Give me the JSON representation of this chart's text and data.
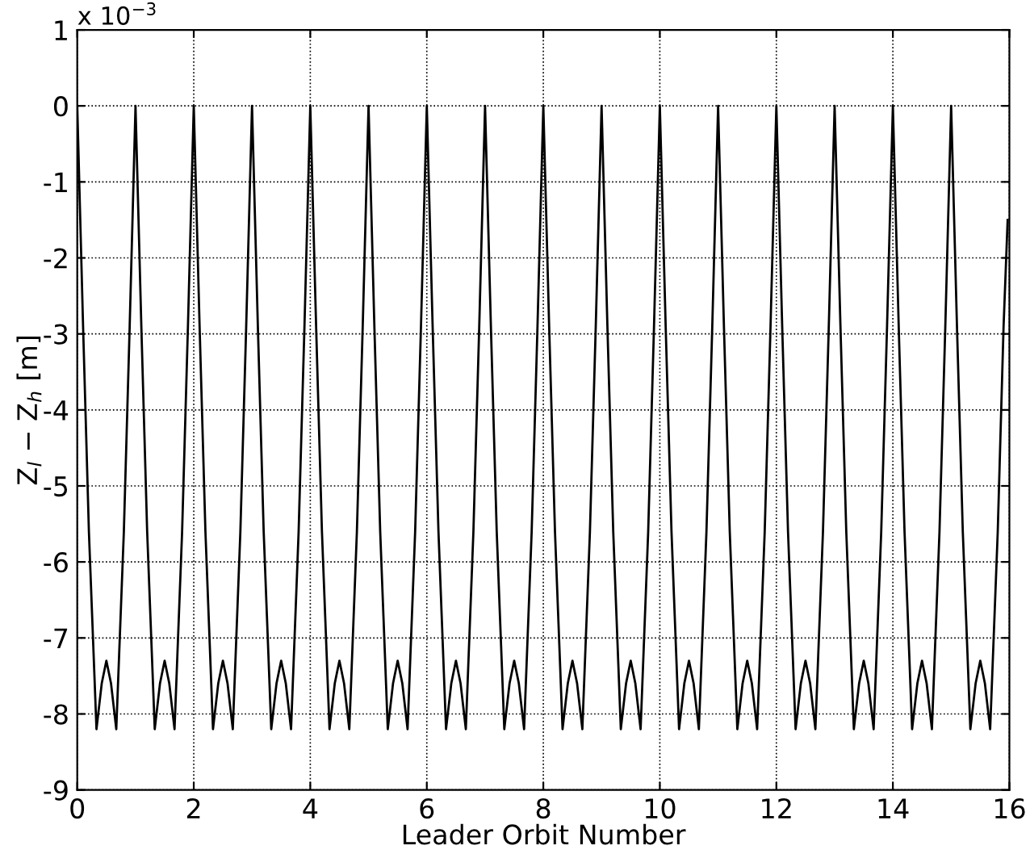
{
  "chart_data": {
    "type": "line",
    "xlabel": "Leader Orbit Number",
    "ylabel": "Z$_{l}$ − Z$_{h}$ [m]",
    "annotations": [
      "x 10$^{−3}$"
    ],
    "xlim": [
      0,
      16
    ],
    "ylim": [
      -9,
      1
    ],
    "xticks": [
      0,
      2,
      4,
      6,
      8,
      10,
      12,
      14,
      16
    ],
    "yticks": [
      -9,
      -8,
      -7,
      -6,
      -5,
      -4,
      -3,
      -2,
      -1,
      0,
      1
    ],
    "grid": true,
    "marker": "none",
    "line_style": "solid",
    "series": [
      {
        "color": "#000000",
        "x": [
          0,
          0.1,
          0.2,
          0.33,
          0.42,
          0.5,
          0.58,
          0.67,
          0.8,
          0.9,
          1,
          1.1,
          1.2,
          1.33,
          1.42,
          1.5,
          1.58,
          1.67,
          1.8,
          1.9,
          2,
          2.1,
          2.2,
          2.33,
          2.42,
          2.5,
          2.58,
          2.67,
          2.8,
          2.9,
          3,
          3.1,
          3.2,
          3.33,
          3.42,
          3.5,
          3.58,
          3.67,
          3.8,
          3.9,
          4,
          4.1,
          4.2,
          4.33,
          4.42,
          4.5,
          4.58,
          4.67,
          4.8,
          4.9,
          5,
          5.1,
          5.2,
          5.33,
          5.42,
          5.5,
          5.58,
          5.67,
          5.8,
          5.9,
          6,
          6.1,
          6.2,
          6.33,
          6.42,
          6.5,
          6.58,
          6.67,
          6.8,
          6.9,
          7,
          7.1,
          7.2,
          7.33,
          7.42,
          7.5,
          7.58,
          7.67,
          7.8,
          7.9,
          8,
          8.1,
          8.2,
          8.33,
          8.42,
          8.5,
          8.58,
          8.67,
          8.8,
          8.9,
          9,
          9.1,
          9.2,
          9.33,
          9.42,
          9.5,
          9.58,
          9.67,
          9.8,
          9.9,
          10,
          10.1,
          10.2,
          10.33,
          10.42,
          10.5,
          10.58,
          10.67,
          10.8,
          10.9,
          11,
          11.1,
          11.2,
          11.33,
          11.42,
          11.5,
          11.58,
          11.67,
          11.8,
          11.9,
          12,
          12.1,
          12.2,
          12.33,
          12.42,
          12.5,
          12.58,
          12.67,
          12.8,
          12.9,
          13,
          13.1,
          13.2,
          13.33,
          13.42,
          13.5,
          13.58,
          13.67,
          13.8,
          13.9,
          14,
          14.1,
          14.2,
          14.33,
          14.42,
          14.5,
          14.58,
          14.67,
          14.8,
          14.9,
          15,
          15.1,
          15.2,
          15.33,
          15.42,
          15.5,
          15.58,
          15.67,
          15.8,
          15.9,
          15.97
        ],
        "values": [
          0,
          -2.9,
          -5.6,
          -8.2,
          -7.6,
          -7.3,
          -7.6,
          -8.2,
          -5.6,
          -2.9,
          0,
          -2.9,
          -5.6,
          -8.2,
          -7.6,
          -7.3,
          -7.6,
          -8.2,
          -5.6,
          -2.9,
          0,
          -2.9,
          -5.6,
          -8.2,
          -7.6,
          -7.3,
          -7.6,
          -8.2,
          -5.6,
          -2.9,
          0,
          -2.9,
          -5.6,
          -8.2,
          -7.6,
          -7.3,
          -7.6,
          -8.2,
          -5.6,
          -2.9,
          0,
          -2.9,
          -5.6,
          -8.2,
          -7.6,
          -7.3,
          -7.6,
          -8.2,
          -5.6,
          -2.9,
          0,
          -2.9,
          -5.6,
          -8.2,
          -7.6,
          -7.3,
          -7.6,
          -8.2,
          -5.6,
          -2.9,
          0,
          -2.9,
          -5.6,
          -8.2,
          -7.6,
          -7.3,
          -7.6,
          -8.2,
          -5.6,
          -2.9,
          0,
          -2.9,
          -5.6,
          -8.2,
          -7.6,
          -7.3,
          -7.6,
          -8.2,
          -5.6,
          -2.9,
          0,
          -2.9,
          -5.6,
          -8.2,
          -7.6,
          -7.3,
          -7.6,
          -8.2,
          -5.6,
          -2.9,
          0,
          -2.9,
          -5.6,
          -8.2,
          -7.6,
          -7.3,
          -7.6,
          -8.2,
          -5.6,
          -2.9,
          0,
          -2.9,
          -5.6,
          -8.2,
          -7.6,
          -7.3,
          -7.6,
          -8.2,
          -5.6,
          -2.9,
          0,
          -2.9,
          -5.6,
          -8.2,
          -7.6,
          -7.3,
          -7.6,
          -8.2,
          -5.6,
          -2.9,
          0,
          -2.9,
          -5.6,
          -8.2,
          -7.6,
          -7.3,
          -7.6,
          -8.2,
          -5.6,
          -2.9,
          0,
          -2.9,
          -5.6,
          -8.2,
          -7.6,
          -7.3,
          -7.6,
          -8.2,
          -5.6,
          -2.9,
          0,
          -2.9,
          -5.6,
          -8.2,
          -7.6,
          -7.3,
          -7.6,
          -8.2,
          -5.6,
          -2.9,
          0,
          -2.9,
          -5.6,
          -8.2,
          -7.6,
          -7.3,
          -7.6,
          -8.2,
          -5.6,
          -2.9,
          -1.5
        ]
      }
    ]
  }
}
